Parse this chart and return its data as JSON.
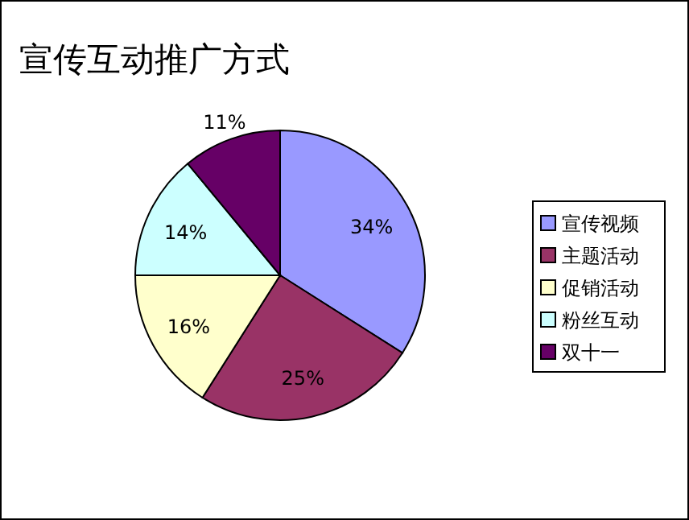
{
  "chart_data": {
    "type": "pie",
    "title": "宣传互动推广方式",
    "categories": [
      "宣传视频",
      "主题活动",
      "促销活动",
      "粉丝互动",
      "双十一"
    ],
    "values": [
      34,
      25,
      16,
      14,
      11
    ],
    "value_labels": [
      "34%",
      "25%",
      "16%",
      "14%",
      "11%"
    ],
    "colors": [
      "#9999ff",
      "#993366",
      "#ffffcc",
      "#ccffff",
      "#660066"
    ],
    "legend": "right"
  }
}
